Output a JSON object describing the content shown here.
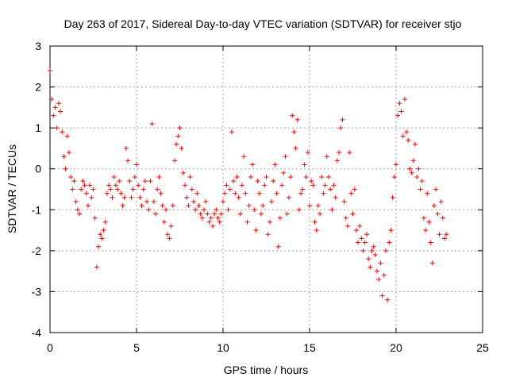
{
  "chart_data": {
    "type": "scatter",
    "title": "Day 263 of 2017, Sidereal Day-to-day VTEC variation (SDTVAR) for receiver stjo",
    "xlabel": "GPS time / hours",
    "ylabel": "SDTVAR / TECUs",
    "xlim": [
      0,
      25
    ],
    "ylim": [
      -4,
      3
    ],
    "xticks": [
      "0",
      "5",
      "10",
      "15",
      "20",
      "25"
    ],
    "yticks": [
      "-4",
      "-3",
      "-2",
      "-1",
      "0",
      "1",
      "2",
      "3"
    ],
    "grid": true,
    "marker": "+",
    "color": "#ff0000",
    "series": [
      {
        "name": "SDTVAR",
        "x": [
          0.0,
          0.1,
          0.2,
          0.3,
          0.4,
          0.5,
          0.6,
          0.7,
          0.8,
          0.9,
          1.0,
          1.1,
          1.2,
          1.3,
          1.4,
          1.5,
          1.6,
          1.7,
          1.8,
          1.9,
          2.0,
          2.1,
          2.2,
          2.3,
          2.4,
          2.5,
          2.6,
          2.7,
          2.8,
          2.9,
          3.0,
          3.1,
          3.2,
          3.3,
          3.4,
          3.5,
          3.6,
          3.7,
          3.8,
          3.9,
          4.0,
          4.1,
          4.2,
          4.3,
          4.4,
          4.5,
          4.6,
          4.7,
          4.8,
          4.9,
          5.0,
          5.1,
          5.2,
          5.3,
          5.4,
          5.5,
          5.6,
          5.7,
          5.8,
          5.9,
          6.0,
          6.1,
          6.2,
          6.3,
          6.4,
          6.5,
          6.6,
          6.7,
          6.8,
          6.9,
          7.0,
          7.1,
          7.2,
          7.3,
          7.4,
          7.5,
          7.6,
          7.7,
          7.8,
          7.9,
          8.0,
          8.1,
          8.2,
          8.3,
          8.4,
          8.5,
          8.6,
          8.7,
          8.8,
          8.9,
          9.0,
          9.1,
          9.2,
          9.3,
          9.4,
          9.5,
          9.6,
          9.7,
          9.8,
          9.9,
          10.0,
          10.1,
          10.2,
          10.3,
          10.4,
          10.5,
          10.6,
          10.7,
          10.8,
          10.9,
          11.0,
          11.1,
          11.2,
          11.3,
          11.4,
          11.5,
          11.6,
          11.7,
          11.8,
          11.9,
          12.0,
          12.1,
          12.2,
          12.3,
          12.4,
          12.5,
          12.6,
          12.7,
          12.8,
          12.9,
          13.0,
          13.1,
          13.2,
          13.3,
          13.4,
          13.5,
          13.6,
          13.7,
          13.8,
          13.9,
          14.0,
          14.1,
          14.2,
          14.3,
          14.4,
          14.5,
          14.6,
          14.7,
          14.8,
          14.9,
          15.0,
          15.1,
          15.2,
          15.3,
          15.4,
          15.5,
          15.6,
          15.7,
          15.8,
          15.9,
          16.0,
          16.1,
          16.2,
          16.3,
          16.4,
          16.5,
          16.6,
          16.7,
          16.8,
          16.9,
          17.0,
          17.1,
          17.2,
          17.3,
          17.4,
          17.5,
          17.6,
          17.7,
          17.8,
          17.9,
          18.0,
          18.1,
          18.2,
          18.3,
          18.4,
          18.5,
          18.6,
          18.7,
          18.8,
          18.9,
          19.0,
          19.1,
          19.2,
          19.3,
          19.4,
          19.5,
          19.6,
          19.7,
          19.8,
          19.9,
          20.0,
          20.1,
          20.2,
          20.3,
          20.4,
          20.5,
          20.6,
          20.7,
          20.8,
          20.9,
          21.0,
          21.1,
          21.2,
          21.3,
          21.4,
          21.5,
          21.6,
          21.7,
          21.8,
          21.9,
          22.0,
          22.1,
          22.2,
          22.3,
          22.4,
          22.5,
          22.6,
          22.7,
          22.8,
          22.9
        ],
        "y": [
          2.4,
          1.7,
          1.3,
          1.5,
          1.0,
          1.6,
          1.4,
          0.9,
          0.3,
          0.0,
          0.8,
          0.4,
          -0.2,
          -0.5,
          -0.3,
          -0.8,
          -1.0,
          -1.1,
          -0.5,
          -0.3,
          -0.4,
          -0.6,
          -0.9,
          -0.4,
          -0.7,
          -0.5,
          -1.2,
          -2.4,
          -1.9,
          -1.6,
          -1.7,
          -1.5,
          -1.3,
          -0.6,
          -0.4,
          -0.5,
          -0.7,
          -0.2,
          -0.4,
          -0.5,
          -0.3,
          -0.6,
          -0.9,
          -0.7,
          0.5,
          0.2,
          -0.3,
          -0.7,
          -0.5,
          -0.2,
          0.1,
          -0.4,
          -0.7,
          -0.9,
          -0.5,
          -0.3,
          -0.8,
          -1.0,
          -0.3,
          1.1,
          -0.8,
          -1.1,
          -0.5,
          -0.2,
          -0.6,
          -0.9,
          -1.3,
          -1.0,
          -1.6,
          -1.7,
          -1.4,
          -0.9,
          0.2,
          0.6,
          0.8,
          1.0,
          0.5,
          -0.1,
          -0.4,
          -0.7,
          -0.9,
          -0.2,
          -0.5,
          -0.8,
          -1.0,
          -0.6,
          -0.9,
          -1.1,
          -1.2,
          -1.0,
          -0.8,
          -1.1,
          -1.3,
          -1.2,
          -1.4,
          -1.1,
          -1.0,
          -1.2,
          -1.3,
          -1.1,
          -0.8,
          -0.6,
          -0.4,
          -1.0,
          -0.5,
          0.9,
          -0.3,
          -0.6,
          -0.2,
          -0.7,
          -1.1,
          -0.4,
          0.3,
          -0.6,
          -1.3,
          -0.9,
          -0.2,
          0.1,
          -1.0,
          -1.5,
          -0.3,
          -0.6,
          -1.1,
          -0.9,
          -0.4,
          -0.2,
          -1.6,
          -1.3,
          -0.8,
          -0.3,
          0.1,
          -0.6,
          -1.9,
          -1.2,
          -0.4,
          -0.1,
          0.3,
          -1.1,
          -0.7,
          -0.2,
          1.3,
          0.9,
          0.5,
          1.2,
          -1.0,
          -0.6,
          -0.5,
          0.1,
          -0.2,
          0.4,
          -0.9,
          -0.3,
          -0.4,
          -1.3,
          -1.5,
          -0.9,
          -1.1,
          -0.2,
          -0.6,
          -0.4,
          0.3,
          -0.2,
          -0.5,
          -1.0,
          -0.4,
          -0.7,
          0.2,
          0.4,
          1.0,
          1.2,
          -0.8,
          -1.2,
          -1.4,
          0.4,
          -0.6,
          -1.1,
          -0.5,
          -1.5,
          -1.8,
          -1.4,
          -1.7,
          -2.0,
          -1.8,
          -1.6,
          -2.2,
          -2.4,
          -2.0,
          -1.9,
          -2.1,
          -2.5,
          -2.7,
          -2.3,
          -3.1,
          -2.6,
          -2.0,
          -3.2,
          -1.8,
          -1.5,
          -0.7,
          -0.2,
          0.1,
          1.3,
          1.6,
          1.4,
          0.8,
          1.7,
          0.9,
          0.7,
          0.0,
          -0.1,
          0.2,
          0.6,
          -0.2,
          0.0,
          -0.5,
          -0.3,
          -1.2,
          -1.5,
          -0.6,
          -1.3,
          -1.8,
          -2.3,
          -0.9,
          -0.5,
          -1.1,
          -1.6,
          -0.8,
          -1.2,
          -1.7,
          -1.6
        ]
      }
    ]
  }
}
